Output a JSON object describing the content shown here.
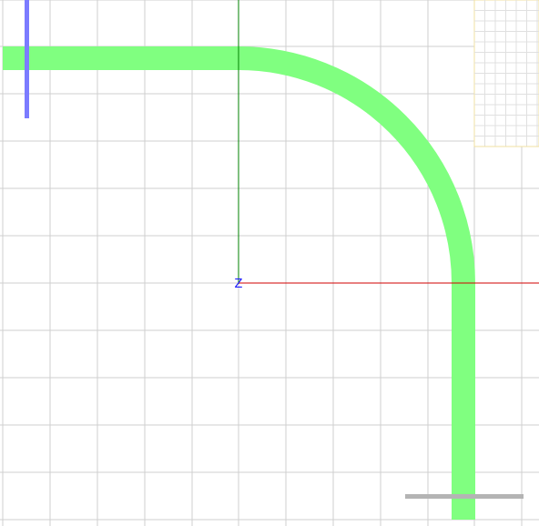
{
  "viewport": {
    "background": "#ffffff",
    "grid_color": "#cfcfcf"
  },
  "axes": {
    "x_axis_color": "#d00000",
    "y_axis_color": "#008000",
    "z_label": "Z",
    "z_label_color": "#2020ff"
  },
  "path": {
    "color": "#80ff80",
    "shape": "horizontal-segment-arc-vertical-segment"
  },
  "markers": {
    "blue_marker_color": "#7b7bff",
    "gray_marker_color": "#b4b4b4"
  },
  "mini_panel": {
    "border_color": "#f0e0a0",
    "grid_color": "#e0e0e0"
  }
}
